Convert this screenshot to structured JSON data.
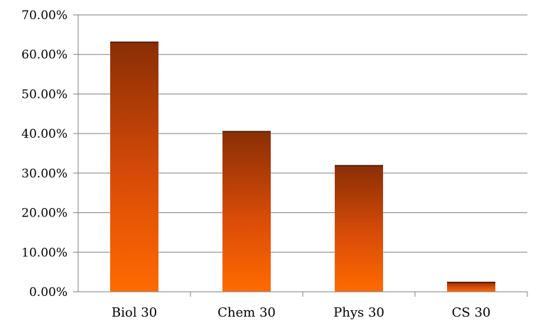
{
  "chart_data": {
    "type": "bar",
    "categories": [
      "Biol 30",
      "Chem 30",
      "Phys 30",
      "CS 30"
    ],
    "values": [
      63.2,
      40.6,
      32.0,
      2.5
    ],
    "y_unit": "%",
    "ylim": [
      0,
      70
    ],
    "y_ticks": [
      0,
      10,
      20,
      30,
      40,
      50,
      60,
      70
    ],
    "y_tick_labels": [
      "0.00%",
      "10.00%",
      "20.00%",
      "30.00%",
      "40.00%",
      "50.00%",
      "60.00%",
      "70.00%"
    ],
    "grid": true,
    "legend": "none",
    "colors": {
      "bar_top": "#8a2e05",
      "bar_bottom": "#ff6a00",
      "grid": "#808080",
      "axis": "#808080"
    }
  }
}
